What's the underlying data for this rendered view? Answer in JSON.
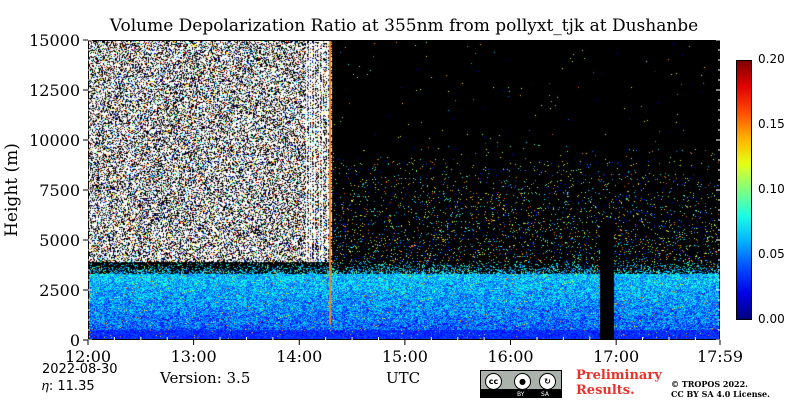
{
  "chart_data": {
    "type": "heatmap",
    "title": "Volume Depolarization Ratio at 355nm from pollyxt_tjk at Dushanbe",
    "xlabel": "UTC",
    "ylabel": "Height (m)",
    "xlim": [
      "12:00",
      "17:59"
    ],
    "ylim": [
      0,
      15000
    ],
    "x_ticks": [
      "12:00",
      "13:00",
      "14:00",
      "15:00",
      "16:00",
      "17:00",
      "17:59"
    ],
    "y_ticks": [
      "0",
      "2500",
      "5000",
      "7500",
      "10000",
      "12500",
      "15000"
    ],
    "y_tick_values": [
      0,
      2500,
      5000,
      7500,
      10000,
      12500,
      15000
    ],
    "x_tick_hours": [
      12.0,
      13.0,
      14.0,
      15.0,
      16.0,
      17.0,
      17.983
    ],
    "colorbar": {
      "range": [
        0.0,
        0.2
      ],
      "ticks": [
        "0.00",
        "0.05",
        "0.10",
        "0.15",
        "0.20"
      ],
      "tick_values": [
        0.0,
        0.05,
        0.1,
        0.15,
        0.2
      ],
      "colormap": "jet"
    },
    "features": {
      "aerosol_layer_top_m": 4000,
      "noisy_signal_until_utc": "14:18",
      "data_gap_utc": [
        "16:50",
        "16:58"
      ],
      "gap_top_m": 6000
    }
  },
  "footer": {
    "date": "2022-08-30",
    "eta": "𝜂:  11.35",
    "version": "Version: 3.5",
    "xlabel": "UTC",
    "preliminary": [
      "Preliminary",
      "Results."
    ],
    "copyright": [
      "© TROPOS 2022.",
      "CC BY SA 4.0 License."
    ],
    "cc_badge": [
      "cc",
      "BY",
      "SA"
    ]
  },
  "colors": {
    "background": "#000000",
    "preliminary_text": "#e8322c"
  }
}
